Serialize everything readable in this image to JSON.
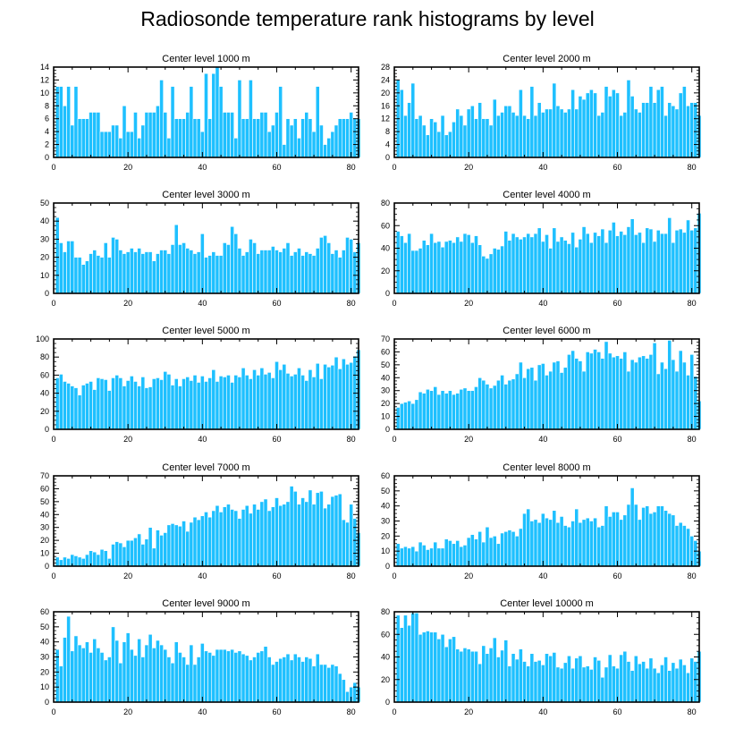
{
  "chart_data": {
    "type": "bar",
    "title": "Radiosonde temperature rank histograms by level",
    "bar_color": "#1ec0ff",
    "bar_edge_color": "#ffffff",
    "xlim": [
      0,
      82
    ],
    "xticks": [
      0,
      20,
      40,
      60,
      80
    ],
    "panels": [
      {
        "title": "Center level 1000 m",
        "ylim": [
          0,
          14
        ],
        "yticks": [
          0,
          2,
          4,
          6,
          8,
          10,
          12,
          14
        ],
        "values": [
          11,
          11,
          8,
          11,
          5,
          11,
          6,
          6,
          6,
          7,
          7,
          7,
          4,
          4,
          4,
          5,
          5,
          3,
          8,
          4,
          4,
          7,
          3,
          5,
          7,
          7,
          7,
          8,
          12,
          7,
          3,
          11,
          6,
          6,
          6,
          7,
          11,
          6,
          6,
          4,
          13,
          6,
          13,
          14,
          11,
          7,
          7,
          7,
          3,
          12,
          6,
          6,
          12,
          6,
          6,
          7,
          7,
          4,
          5,
          7,
          11,
          2,
          6,
          5,
          6,
          3,
          6,
          7,
          6,
          4,
          11,
          5,
          2,
          3,
          4,
          5,
          6,
          6,
          6,
          7,
          6,
          6
        ]
      },
      {
        "title": "Center level 2000 m",
        "ylim": [
          0,
          28
        ],
        "yticks": [
          0,
          4,
          8,
          12,
          16,
          20,
          24,
          28
        ],
        "values": [
          24,
          21,
          13,
          17,
          23,
          12,
          13,
          10,
          7,
          12,
          11,
          8,
          13,
          7,
          8,
          11,
          15,
          13,
          10,
          15,
          16,
          12,
          17,
          12,
          12,
          10,
          18,
          13,
          14,
          16,
          16,
          14,
          13,
          21,
          13,
          12,
          22,
          13,
          17,
          14,
          15,
          15,
          23,
          16,
          15,
          14,
          15,
          21,
          15,
          19,
          18,
          20,
          21,
          20,
          13,
          14,
          22,
          19,
          21,
          20,
          13,
          14,
          24,
          19,
          15,
          14,
          17,
          17,
          22,
          17,
          21,
          22,
          13,
          17,
          16,
          15,
          20,
          22,
          16,
          17,
          17,
          13
        ]
      },
      {
        "title": "Center level 3000 m",
        "ylim": [
          0,
          50
        ],
        "yticks": [
          0,
          10,
          20,
          30,
          40,
          50
        ],
        "values": [
          42,
          28,
          23,
          29,
          29,
          20,
          20,
          16,
          18,
          22,
          24,
          21,
          20,
          28,
          20,
          31,
          30,
          24,
          22,
          23,
          25,
          23,
          25,
          22,
          23,
          23,
          18,
          22,
          24,
          24,
          22,
          27,
          38,
          27,
          28,
          25,
          24,
          22,
          23,
          33,
          20,
          21,
          23,
          21,
          21,
          28,
          27,
          37,
          33,
          25,
          21,
          23,
          30,
          28,
          22,
          24,
          24,
          24,
          26,
          24,
          23,
          25,
          28,
          21,
          23,
          25,
          21,
          23,
          22,
          21,
          25,
          31,
          32,
          28,
          22,
          24,
          20,
          24,
          31,
          30,
          23,
          28
        ]
      },
      {
        "title": "Center level 4000 m",
        "ylim": [
          0,
          80
        ],
        "yticks": [
          0,
          20,
          40,
          60,
          80
        ],
        "values": [
          55,
          51,
          45,
          53,
          38,
          38,
          40,
          47,
          43,
          53,
          45,
          46,
          41,
          46,
          47,
          45,
          50,
          46,
          53,
          52,
          45,
          51,
          43,
          33,
          31,
          35,
          40,
          39,
          42,
          55,
          47,
          53,
          50,
          48,
          50,
          53,
          50,
          53,
          58,
          46,
          52,
          40,
          58,
          46,
          50,
          47,
          44,
          54,
          41,
          48,
          59,
          53,
          45,
          54,
          51,
          57,
          45,
          56,
          63,
          51,
          55,
          52,
          59,
          66,
          52,
          54,
          45,
          58,
          57,
          46,
          56,
          53,
          53,
          67,
          45,
          56,
          57,
          54,
          65,
          56,
          58,
          71
        ]
      },
      {
        "title": "Center level 5000 m",
        "ylim": [
          0,
          100
        ],
        "yticks": [
          0,
          20,
          40,
          60,
          80,
          100
        ],
        "values": [
          57,
          61,
          53,
          51,
          48,
          46,
          38,
          49,
          51,
          53,
          44,
          57,
          56,
          55,
          43,
          57,
          60,
          57,
          48,
          54,
          59,
          53,
          48,
          58,
          46,
          47,
          56,
          57,
          55,
          64,
          61,
          49,
          56,
          48,
          56,
          58,
          54,
          60,
          52,
          59,
          53,
          57,
          66,
          53,
          59,
          58,
          60,
          52,
          60,
          58,
          68,
          60,
          56,
          66,
          60,
          68,
          61,
          63,
          57,
          75,
          66,
          72,
          62,
          59,
          61,
          68,
          60,
          54,
          66,
          58,
          73,
          56,
          72,
          69,
          71,
          80,
          67,
          78,
          72,
          74,
          81,
          88
        ]
      },
      {
        "title": "Center level 6000 m",
        "ylim": [
          0,
          70
        ],
        "yticks": [
          0,
          10,
          20,
          30,
          40,
          50,
          60,
          70
        ],
        "values": [
          17,
          20,
          21,
          22,
          20,
          23,
          29,
          28,
          31,
          30,
          33,
          27,
          30,
          28,
          30,
          27,
          28,
          31,
          32,
          30,
          30,
          33,
          40,
          38,
          35,
          32,
          34,
          38,
          42,
          35,
          38,
          39,
          43,
          52,
          40,
          47,
          48,
          38,
          50,
          51,
          42,
          45,
          52,
          53,
          44,
          48,
          58,
          61,
          55,
          53,
          45,
          60,
          59,
          62,
          60,
          55,
          68,
          59,
          56,
          57,
          55,
          60,
          45,
          54,
          52,
          56,
          57,
          55,
          58,
          67,
          43,
          52,
          47,
          69,
          54,
          45,
          61,
          52,
          42,
          58,
          41,
          22
        ]
      },
      {
        "title": "Center level 7000 m",
        "ylim": [
          0,
          70
        ],
        "yticks": [
          0,
          10,
          20,
          30,
          40,
          50,
          60,
          70
        ],
        "values": [
          7,
          5,
          7,
          6,
          9,
          8,
          7,
          6,
          9,
          12,
          11,
          9,
          13,
          12,
          6,
          17,
          19,
          18,
          15,
          20,
          20,
          22,
          25,
          17,
          21,
          30,
          14,
          28,
          24,
          26,
          32,
          33,
          32,
          31,
          35,
          27,
          34,
          38,
          36,
          39,
          42,
          38,
          43,
          47,
          42,
          46,
          48,
          44,
          43,
          37,
          44,
          47,
          41,
          48,
          44,
          50,
          52,
          43,
          46,
          53,
          47,
          48,
          50,
          62,
          58,
          48,
          53,
          50,
          59,
          48,
          57,
          58,
          45,
          48,
          54,
          55,
          56,
          36,
          34,
          48,
          37,
          26
        ]
      },
      {
        "title": "Center level 8000 m",
        "ylim": [
          0,
          60
        ],
        "yticks": [
          0,
          10,
          20,
          30,
          40,
          50,
          60
        ],
        "values": [
          15,
          12,
          13,
          12,
          13,
          10,
          16,
          14,
          11,
          12,
          16,
          12,
          12,
          18,
          17,
          15,
          17,
          13,
          14,
          19,
          21,
          18,
          23,
          16,
          26,
          19,
          20,
          15,
          22,
          23,
          24,
          23,
          20,
          25,
          35,
          38,
          30,
          31,
          29,
          35,
          32,
          31,
          37,
          29,
          33,
          27,
          26,
          30,
          38,
          29,
          31,
          32,
          30,
          32,
          26,
          27,
          40,
          33,
          36,
          36,
          31,
          34,
          41,
          52,
          41,
          31,
          39,
          40,
          35,
          36,
          40,
          40,
          37,
          35,
          34,
          27,
          29,
          27,
          25,
          20,
          17,
          10
        ]
      },
      {
        "title": "Center level 9000 m",
        "ylim": [
          0,
          60
        ],
        "yticks": [
          0,
          10,
          20,
          30,
          40,
          50,
          60
        ],
        "values": [
          35,
          24,
          43,
          57,
          34,
          44,
          38,
          36,
          40,
          33,
          42,
          36,
          33,
          28,
          30,
          50,
          41,
          26,
          40,
          46,
          35,
          31,
          42,
          30,
          38,
          45,
          36,
          41,
          38,
          35,
          30,
          26,
          40,
          33,
          30,
          25,
          38,
          25,
          30,
          39,
          34,
          33,
          31,
          35,
          35,
          35,
          34,
          35,
          33,
          34,
          32,
          31,
          28,
          30,
          33,
          34,
          37,
          30,
          25,
          27,
          29,
          30,
          32,
          28,
          32,
          30,
          27,
          30,
          29,
          24,
          32,
          25,
          25,
          23,
          25,
          24,
          19,
          15,
          7,
          10,
          13,
          10
        ]
      },
      {
        "title": "Center level 10000 m",
        "ylim": [
          0,
          80
        ],
        "yticks": [
          0,
          20,
          40,
          60,
          80
        ],
        "values": [
          77,
          66,
          77,
          68,
          79,
          79,
          60,
          62,
          63,
          62,
          62,
          56,
          60,
          49,
          56,
          58,
          47,
          45,
          48,
          47,
          45,
          45,
          34,
          50,
          43,
          48,
          57,
          40,
          46,
          55,
          32,
          43,
          38,
          47,
          36,
          32,
          43,
          36,
          37,
          33,
          43,
          41,
          44,
          31,
          30,
          35,
          41,
          30,
          39,
          41,
          31,
          32,
          29,
          40,
          37,
          22,
          31,
          42,
          32,
          30,
          42,
          45,
          36,
          28,
          41,
          34,
          36,
          30,
          39,
          30,
          26,
          33,
          40,
          28,
          35,
          30,
          38,
          33,
          26,
          39,
          36,
          45
        ]
      }
    ]
  }
}
